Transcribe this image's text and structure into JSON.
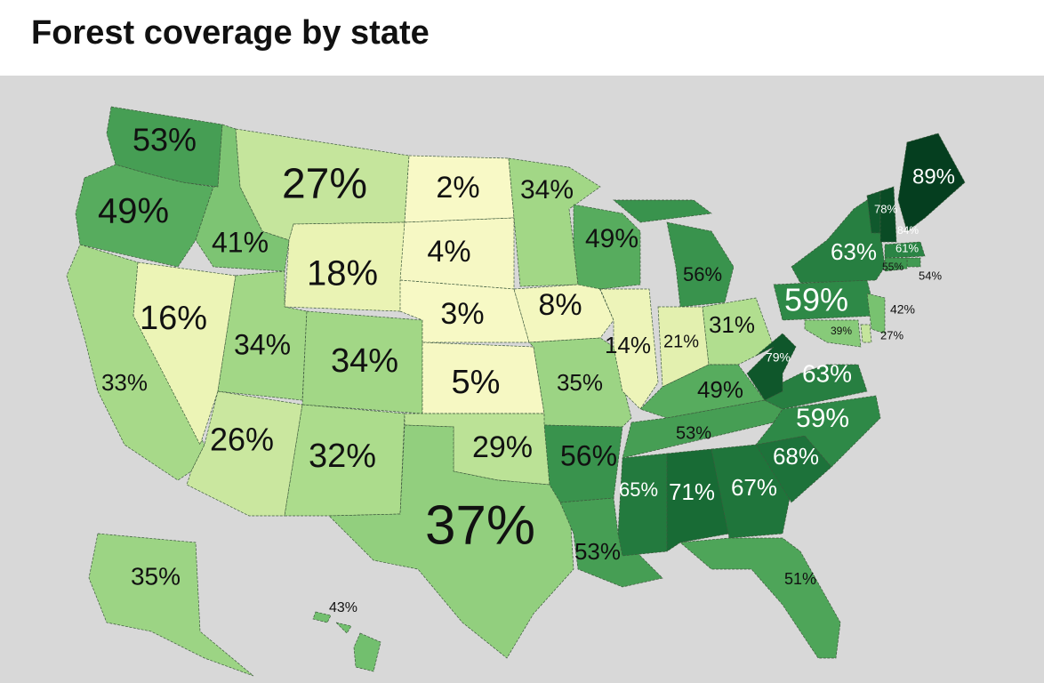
{
  "title": "Forest coverage by state",
  "states": [
    {
      "value": 53,
      "label": "53%"
    },
    {
      "value": 49,
      "label": "49%"
    },
    {
      "value": 33,
      "label": "33%"
    },
    {
      "value": 16,
      "label": "16%"
    },
    {
      "value": 41,
      "label": "41%"
    },
    {
      "value": 27,
      "label": "27%"
    },
    {
      "value": 18,
      "label": "18%"
    },
    {
      "value": 34,
      "label": "34%"
    },
    {
      "value": 34,
      "label": "34%"
    },
    {
      "value": 26,
      "label": "26%"
    },
    {
      "value": 32,
      "label": "32%"
    },
    {
      "value": 2,
      "label": "2%"
    },
    {
      "value": 4,
      "label": "4%"
    },
    {
      "value": 3,
      "label": "3%"
    },
    {
      "value": 5,
      "label": "5%"
    },
    {
      "value": 29,
      "label": "29%"
    },
    {
      "value": 37,
      "label": "37%"
    },
    {
      "value": 34,
      "label": "34%"
    },
    {
      "value": 8,
      "label": "8%"
    },
    {
      "value": 35,
      "label": "35%"
    },
    {
      "value": 56,
      "label": "56%"
    },
    {
      "value": 53,
      "label": "53%"
    },
    {
      "value": 49,
      "label": "49%"
    },
    {
      "value": 56,
      "label": "56%"
    },
    {
      "value": 14,
      "label": "14%"
    },
    {
      "value": 21,
      "label": "21%"
    },
    {
      "value": 31,
      "label": "31%"
    },
    {
      "value": 49,
      "label": "49%"
    },
    {
      "value": 53,
      "label": "53%"
    },
    {
      "value": 65,
      "label": "65%"
    },
    {
      "value": 71,
      "label": "71%"
    },
    {
      "value": 67,
      "label": "67%"
    },
    {
      "value": 51,
      "label": "51%"
    },
    {
      "value": 68,
      "label": "68%"
    },
    {
      "value": 59,
      "label": "59%"
    },
    {
      "value": 63,
      "label": "63%"
    },
    {
      "value": 79,
      "label": "79%"
    },
    {
      "value": 59,
      "label": "59%"
    },
    {
      "value": 63,
      "label": "63%"
    },
    {
      "value": 78,
      "label": "78%"
    },
    {
      "value": 84,
      "label": "84%"
    },
    {
      "value": 89,
      "label": "89%"
    },
    {
      "value": 61,
      "label": "61%"
    },
    {
      "value": 54,
      "label": "54%"
    },
    {
      "value": 55,
      "label": "55%"
    },
    {
      "value": 42,
      "label": "42%"
    },
    {
      "value": 27,
      "label": "27%"
    },
    {
      "value": 39,
      "label": "39%"
    },
    {
      "value": 35,
      "label": "35%"
    },
    {
      "value": 43,
      "label": "43%"
    }
  ]
}
